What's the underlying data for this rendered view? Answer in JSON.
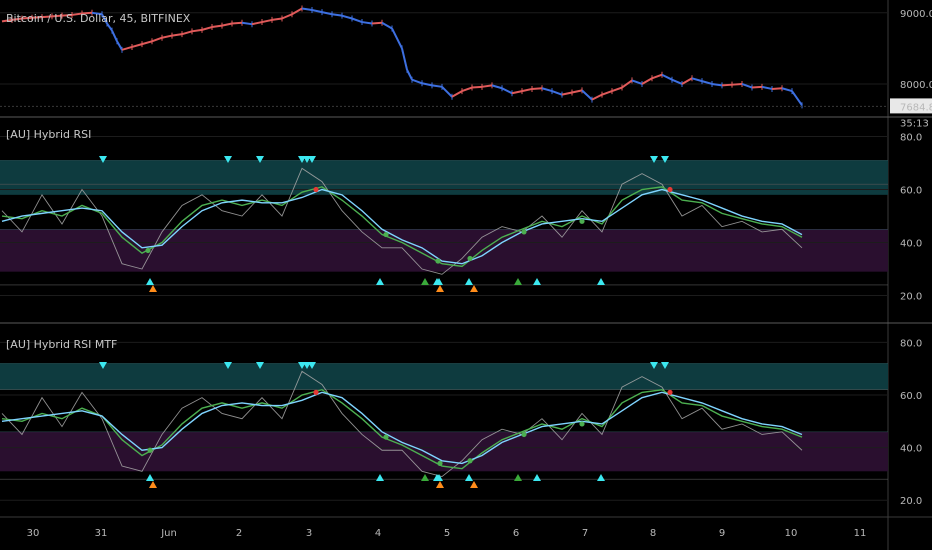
{
  "chart_data": [
    {
      "type": "candlestick",
      "title": "Bitcoin / U.S. Dollar, 45, BITFINEX",
      "ylim": [
        7550,
        9180
      ],
      "y_ticks": [
        "9000.0",
        "8000.0"
      ],
      "y_tick_values": [
        9000,
        8000
      ],
      "last_price": "7684.8",
      "countdown": "35:13",
      "x": [
        0,
        10,
        20,
        30,
        40,
        50,
        60,
        70,
        80,
        90,
        100,
        105,
        110,
        115,
        120,
        130,
        140,
        150,
        160,
        170,
        180,
        190,
        200,
        210,
        220,
        230,
        240,
        250,
        260,
        270,
        280,
        290,
        300,
        310,
        320,
        330,
        340,
        350,
        360,
        370,
        380,
        390,
        400,
        405,
        410,
        420,
        430,
        440,
        450,
        460,
        470,
        480,
        490,
        500,
        510,
        520,
        530,
        540,
        550,
        560,
        570,
        580,
        590,
        600,
        610,
        620,
        630,
        640,
        650,
        660,
        670,
        680,
        690,
        700,
        710,
        720,
        730,
        740,
        750,
        760,
        770,
        780,
        790,
        800
      ],
      "values": [
        8880,
        8900,
        8920,
        8930,
        8940,
        8950,
        8960,
        8970,
        8990,
        9000,
        8980,
        8850,
        8750,
        8600,
        8480,
        8520,
        8560,
        8600,
        8650,
        8680,
        8700,
        8740,
        8760,
        8800,
        8820,
        8850,
        8860,
        8840,
        8870,
        8900,
        8920,
        8980,
        9060,
        9040,
        9010,
        8980,
        8960,
        8920,
        8870,
        8850,
        8860,
        8780,
        8500,
        8200,
        8060,
        8010,
        7980,
        7960,
        7820,
        7900,
        7950,
        7960,
        7980,
        7940,
        7870,
        7900,
        7930,
        7940,
        7900,
        7850,
        7880,
        7910,
        7780,
        7850,
        7900,
        7950,
        8050,
        8000,
        8080,
        8130,
        8060,
        8000,
        8080,
        8040,
        8000,
        7980,
        7990,
        8000,
        7950,
        7960,
        7930,
        7940,
        7900,
        7700
      ]
    },
    {
      "type": "line",
      "title": "[AU] Hybrid RSI",
      "ylim": [
        10,
        87
      ],
      "y_ticks": [
        "80.0",
        "60.0",
        "40.0",
        "20.0"
      ],
      "y_tick_values": [
        80,
        60,
        40,
        20
      ],
      "bands": [
        {
          "from": 58,
          "to": 71,
          "color": "#0e3b3f"
        },
        {
          "from": 29,
          "to": 45,
          "color": "#2a0f2f"
        }
      ],
      "levels": [
        62,
        40,
        24
      ],
      "x": [
        0,
        20,
        40,
        60,
        80,
        100,
        120,
        140,
        160,
        180,
        200,
        220,
        240,
        260,
        280,
        300,
        320,
        340,
        360,
        380,
        400,
        420,
        440,
        460,
        480,
        500,
        520,
        540,
        560,
        580,
        600,
        620,
        640,
        660,
        680,
        700,
        720,
        740,
        760,
        780,
        800
      ],
      "series": [
        {
          "color": "#7fd4ff",
          "values": [
            48,
            50,
            51,
            52,
            53,
            52,
            44,
            38,
            39,
            46,
            52,
            55,
            56,
            55,
            55,
            57,
            60,
            58,
            52,
            45,
            41,
            38,
            33,
            32,
            35,
            40,
            44,
            47,
            48,
            49,
            48,
            53,
            58,
            60,
            58,
            56,
            53,
            50,
            48,
            47,
            43
          ]
        },
        {
          "color": "#4caf50",
          "values": [
            50,
            49,
            52,
            50,
            54,
            51,
            42,
            36,
            40,
            48,
            54,
            56,
            54,
            56,
            54,
            59,
            61,
            56,
            50,
            43,
            40,
            36,
            32,
            31,
            37,
            42,
            45,
            48,
            46,
            50,
            47,
            56,
            60,
            61,
            56,
            55,
            51,
            49,
            47,
            46,
            42
          ]
        },
        {
          "color": "#a9a9a9",
          "values": [
            52,
            44,
            58,
            47,
            60,
            50,
            32,
            30,
            44,
            54,
            58,
            52,
            50,
            58,
            50,
            68,
            63,
            52,
            44,
            38,
            38,
            30,
            28,
            34,
            42,
            46,
            44,
            50,
            42,
            52,
            44,
            62,
            66,
            62,
            50,
            54,
            46,
            48,
            44,
            45,
            38
          ]
        }
      ],
      "markers_top": [
        103,
        228,
        260,
        302,
        307,
        312,
        654,
        665
      ],
      "markers_bottom": [
        150,
        380,
        425,
        437,
        439,
        469,
        518,
        537,
        601
      ],
      "markers_bottom_orange": [
        153,
        440,
        474
      ],
      "dots": [
        {
          "x": 148,
          "y": 37,
          "color": "#4caf50"
        },
        {
          "x": 316,
          "y": 60,
          "color": "#e53935"
        },
        {
          "x": 386,
          "y": 43,
          "color": "#4caf50"
        },
        {
          "x": 438,
          "y": 33,
          "color": "#4caf50"
        },
        {
          "x": 470,
          "y": 34,
          "color": "#4caf50"
        },
        {
          "x": 524,
          "y": 44,
          "color": "#4caf50"
        },
        {
          "x": 582,
          "y": 48,
          "color": "#4caf50"
        },
        {
          "x": 670,
          "y": 60,
          "color": "#e53935"
        }
      ]
    },
    {
      "type": "line",
      "title": "[AU] Hybrid RSI MTF",
      "ylim": [
        14,
        87
      ],
      "y_ticks": [
        "80.0",
        "60.0",
        "40.0",
        "20.0"
      ],
      "y_tick_values": [
        80,
        60,
        40,
        20
      ],
      "bands": [
        {
          "from": 62,
          "to": 72,
          "color": "#0e3b3f"
        },
        {
          "from": 31,
          "to": 46,
          "color": "#2a0f2f"
        }
      ],
      "levels": [
        62,
        40,
        28
      ],
      "x": [
        0,
        20,
        40,
        60,
        80,
        100,
        120,
        140,
        160,
        180,
        200,
        220,
        240,
        260,
        280,
        300,
        320,
        340,
        360,
        380,
        400,
        420,
        440,
        460,
        480,
        500,
        520,
        540,
        560,
        580,
        600,
        620,
        640,
        660,
        680,
        700,
        720,
        740,
        760,
        780,
        800
      ],
      "series": [
        {
          "color": "#7fd4ff",
          "values": [
            50,
            51,
            52,
            53,
            54,
            52,
            45,
            39,
            40,
            47,
            53,
            56,
            57,
            56,
            56,
            58,
            61,
            59,
            53,
            46,
            42,
            39,
            35,
            34,
            37,
            42,
            45,
            48,
            49,
            50,
            49,
            54,
            59,
            61,
            59,
            57,
            54,
            51,
            49,
            48,
            45
          ]
        },
        {
          "color": "#4caf50",
          "values": [
            51,
            50,
            53,
            51,
            55,
            52,
            43,
            37,
            41,
            49,
            55,
            57,
            55,
            57,
            55,
            60,
            62,
            57,
            51,
            44,
            41,
            37,
            33,
            32,
            38,
            43,
            46,
            49,
            47,
            51,
            48,
            57,
            61,
            62,
            57,
            56,
            52,
            50,
            48,
            47,
            44
          ]
        },
        {
          "color": "#a9a9a9",
          "values": [
            53,
            45,
            59,
            48,
            61,
            51,
            33,
            31,
            45,
            55,
            59,
            53,
            51,
            59,
            51,
            69,
            64,
            53,
            45,
            39,
            39,
            31,
            29,
            35,
            43,
            47,
            45,
            51,
            43,
            53,
            45,
            63,
            67,
            63,
            51,
            55,
            47,
            49,
            45,
            46,
            39
          ]
        }
      ],
      "markers_top": [
        103,
        228,
        260,
        302,
        307,
        312,
        654,
        665
      ],
      "markers_bottom": [
        150,
        380,
        425,
        437,
        439,
        469,
        518,
        537,
        601
      ],
      "markers_bottom_orange": [
        153,
        440,
        474
      ],
      "dots": [
        {
          "x": 150,
          "y": 39,
          "color": "#4caf50"
        },
        {
          "x": 316,
          "y": 61,
          "color": "#e53935"
        },
        {
          "x": 386,
          "y": 44,
          "color": "#4caf50"
        },
        {
          "x": 440,
          "y": 34,
          "color": "#4caf50"
        },
        {
          "x": 470,
          "y": 35,
          "color": "#4caf50"
        },
        {
          "x": 524,
          "y": 45,
          "color": "#4caf50"
        },
        {
          "x": 582,
          "y": 49,
          "color": "#4caf50"
        },
        {
          "x": 670,
          "y": 61,
          "color": "#e53935"
        }
      ]
    }
  ],
  "x_axis": {
    "labels": [
      "30",
      "31",
      "Jun",
      "2",
      "3",
      "4",
      "5",
      "6",
      "7",
      "8",
      "9",
      "10",
      "11"
    ],
    "positions": [
      33,
      101,
      169,
      239,
      309,
      378,
      447,
      516,
      585,
      653,
      722,
      791,
      860
    ]
  },
  "colors": {
    "up": "#e05a5a",
    "down": "#3d6fe0",
    "marker": "#3ce8f0",
    "marker_green": "#3aaa3a",
    "marker_orange": "#ff8c1a"
  }
}
